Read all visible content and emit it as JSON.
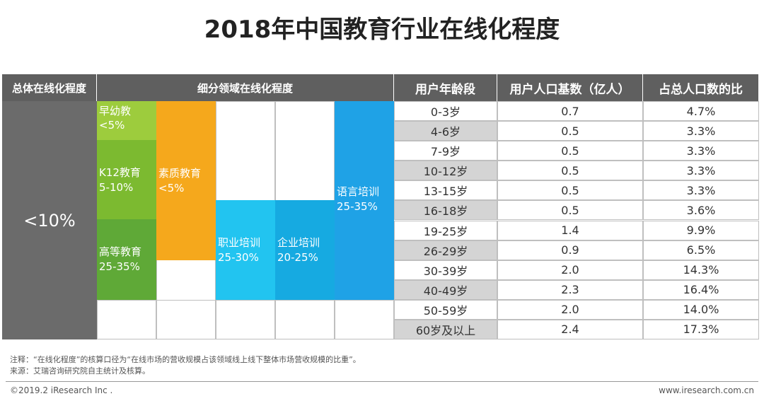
{
  "title": "2018年中国教育行业在线化程度",
  "overall": {
    "header": "总体在线化程度",
    "value": "<10%"
  },
  "segments": {
    "header": "细分领域在线化程度",
    "items": [
      {
        "name": "早幼教",
        "range": "<5%"
      },
      {
        "name": "K12教育",
        "range": "5-10%"
      },
      {
        "name": "高等教育",
        "range": "25-35%"
      },
      {
        "name": "素质教育",
        "range": "<5%"
      },
      {
        "name": "职业培训",
        "range": "25-30%"
      },
      {
        "name": "企业培训",
        "range": "20-25%"
      },
      {
        "name": "语言培训",
        "range": "25-35%"
      }
    ]
  },
  "table": {
    "columns": [
      "用户年龄段",
      "用户人口基数（亿人）",
      "占总人口数的比"
    ],
    "rows": [
      [
        "0-3岁",
        "0.7",
        "4.7%"
      ],
      [
        "4-6岁",
        "0.5",
        "3.3%"
      ],
      [
        "7-9岁",
        "0.5",
        "3.3%"
      ],
      [
        "10-12岁",
        "0.5",
        "3.3%"
      ],
      [
        "13-15岁",
        "0.5",
        "3.3%"
      ],
      [
        "16-18岁",
        "0.5",
        "3.6%"
      ],
      [
        "19-25岁",
        "1.4",
        "9.9%"
      ],
      [
        "26-29岁",
        "0.9",
        "6.5%"
      ],
      [
        "30-39岁",
        "2.0",
        "14.3%"
      ],
      [
        "40-49岁",
        "2.3",
        "16.4%"
      ],
      [
        "50-59岁",
        "2.0",
        "14.0%"
      ],
      [
        "60岁及以上",
        "2.4",
        "17.3%"
      ]
    ]
  },
  "notes": [
    "注释：“在线化程度”的核算口径为“在线市场的营收规模占该领域线上线下整体市场营收规模的比重”。",
    "来源：艾瑞咨询研究院自主统计及核算。"
  ],
  "footer": {
    "copyright": "©2019.2 iResearch Inc .",
    "website": "www.iresearch.com.cn"
  }
}
